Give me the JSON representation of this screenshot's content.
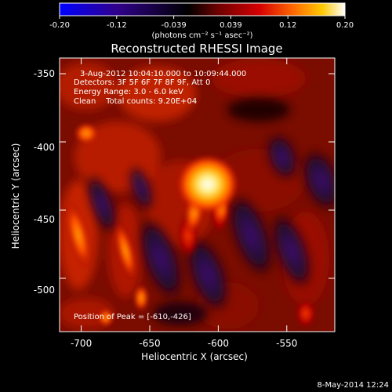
{
  "colorbar": {
    "ticks": [
      "-0.20",
      "-0.12",
      "-0.039",
      "0.039",
      "0.12",
      "0.20"
    ],
    "units": "(photons cm⁻² s⁻¹ asec⁻²)",
    "stops": [
      "#0000ff",
      "#30008c",
      "#000000",
      "#6a0000",
      "#d40000",
      "#ff6a00",
      "#ffc800",
      "#ffffff"
    ]
  },
  "image": {
    "title": "Reconstructed RHESSI Image",
    "info_lines": [
      "3-Aug-2012 10:04:10.000 to 10:09:44.000",
      "Detectors: 3F 5F 6F 7F 8F 9F, Att 0",
      "Energy Range: 3.0 - 6.0 keV",
      "Clean    Total counts: 9.20E+04"
    ],
    "peak_text": "Position of Peak = [-610,-426]",
    "x_label": "Heliocentric X (arcsec)",
    "y_label": "Heliocentric Y (arcsec)",
    "x_ticks": [
      "-700",
      "-650",
      "-600",
      "-550"
    ],
    "y_ticks": [
      "-350",
      "-400",
      "-450",
      "-500"
    ],
    "footer_date": "8-May-2014 12:24"
  }
}
